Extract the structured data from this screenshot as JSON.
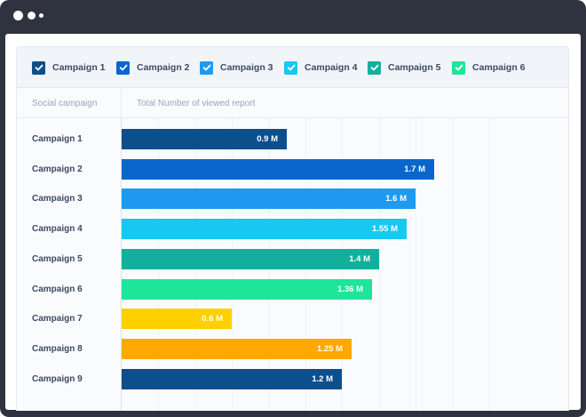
{
  "window": {
    "controls": [
      "window-dot",
      "window-dot",
      "window-dot"
    ]
  },
  "legend": [
    {
      "label": "Campaign 1",
      "checked": true,
      "color": "#0d4f8b"
    },
    {
      "label": "Campaign 2",
      "checked": true,
      "color": "#0a66cc"
    },
    {
      "label": "Campaign 3",
      "checked": true,
      "color": "#1e9bf0"
    },
    {
      "label": "Campaign 4",
      "checked": true,
      "color": "#18c7f2"
    },
    {
      "label": "Campaign 5",
      "checked": true,
      "color": "#12b09c"
    },
    {
      "label": "Campaign 6",
      "checked": true,
      "color": "#1de59a"
    }
  ],
  "headers": {
    "category": "Social campaign",
    "value": "Total Number of viewed report"
  },
  "chart_data": {
    "type": "bar",
    "orientation": "horizontal",
    "categories": [
      "Campaign 1",
      "Campaign 2",
      "Campaign 3",
      "Campaign 4",
      "Campaign 5",
      "Campaign 6",
      "Campaign 7",
      "Campaign 8",
      "Campaign 9"
    ],
    "values": [
      0.9,
      1.7,
      1.6,
      1.55,
      1.4,
      1.36,
      0.6,
      1.25,
      1.2
    ],
    "value_labels": [
      "0.9 M",
      "1.7 M",
      "1.6 M",
      "1.55 M",
      "1.4 M",
      "1.36 M",
      "0.6 M",
      "1.25 M",
      "1.2 M"
    ],
    "colors": [
      "#0d4f8b",
      "#0a66cc",
      "#1e9bf0",
      "#18c7f2",
      "#12b09c",
      "#1de59a",
      "#ffd000",
      "#ffa800",
      "#0d4f8b"
    ],
    "xlim": [
      0,
      2.1
    ],
    "grid": true,
    "xlabel": "Total Number of viewed report",
    "ylabel": "Social campaign"
  }
}
